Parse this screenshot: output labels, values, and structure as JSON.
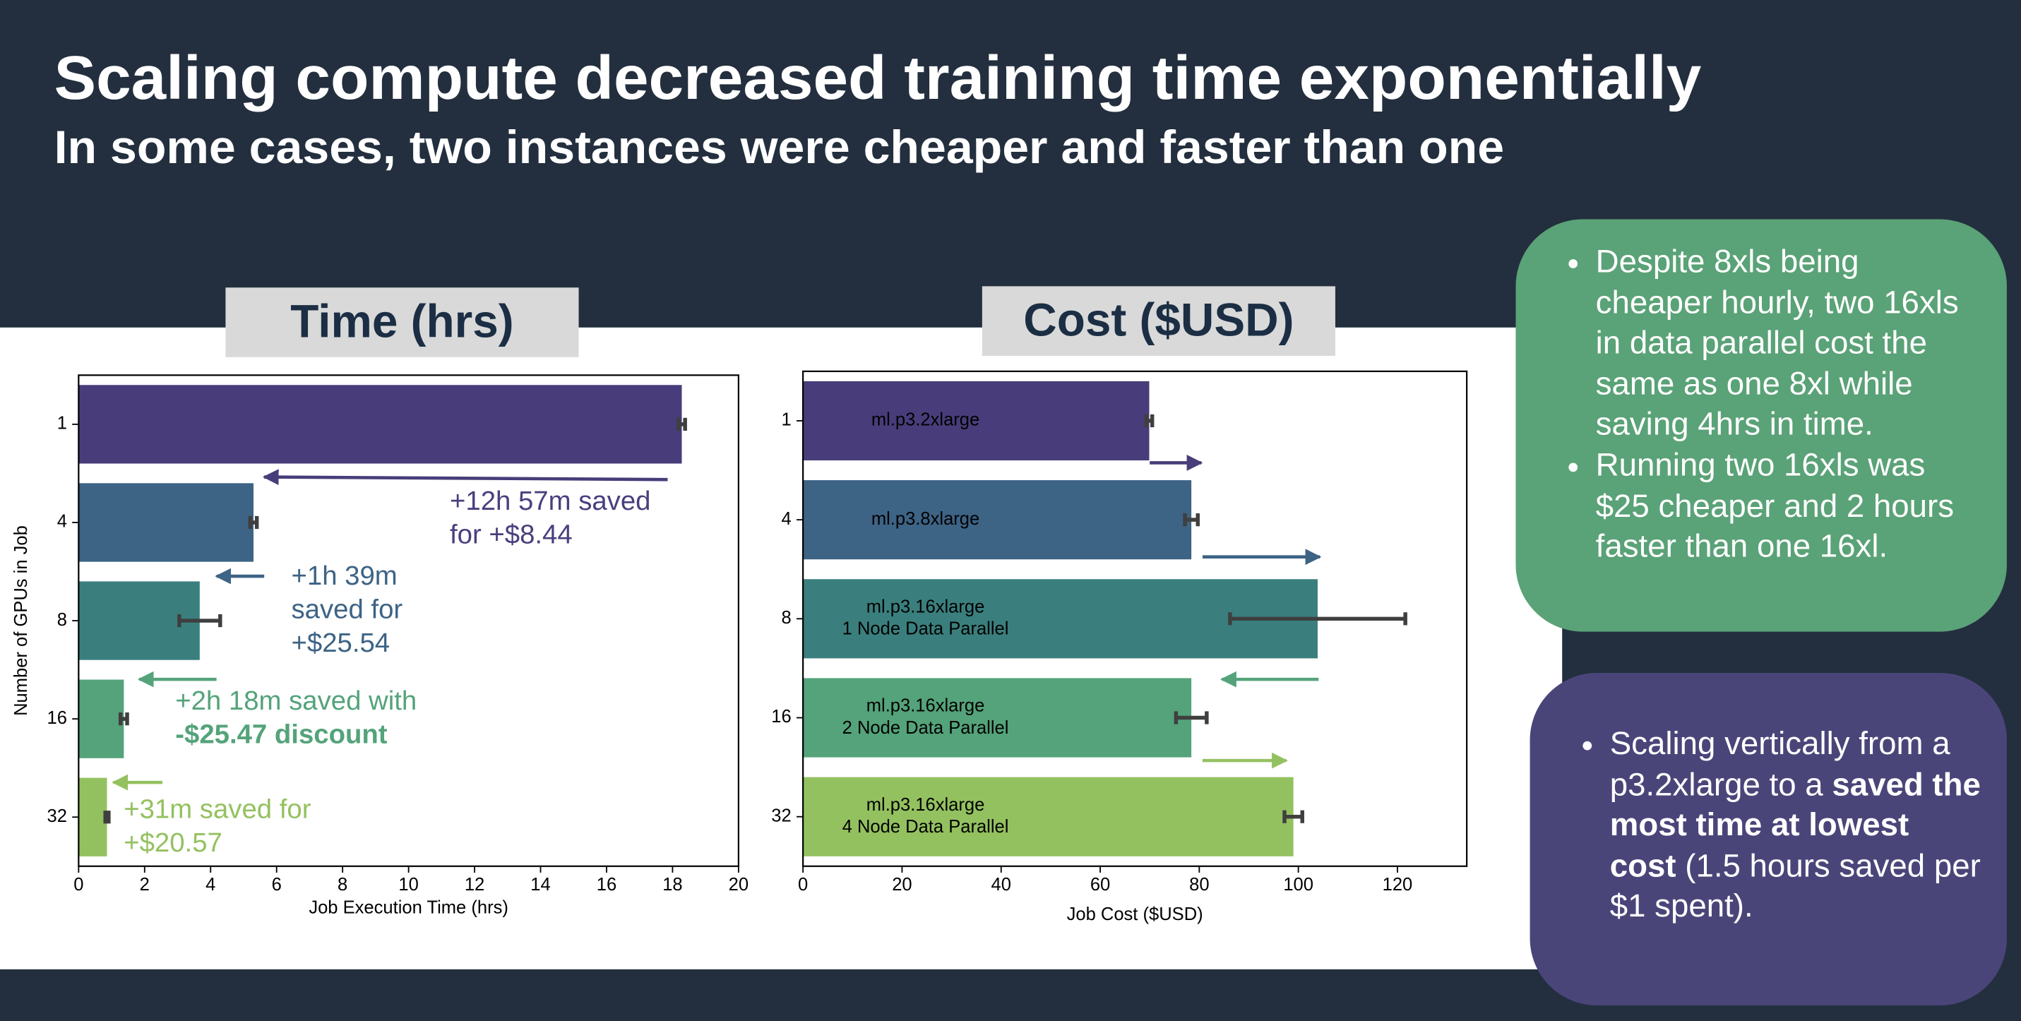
{
  "title": "Scaling compute decreased training time exponentially",
  "subtitle": "In some cases, two instances were cheaper and faster than one",
  "chart_data": [
    {
      "type": "bar",
      "orientation": "horizontal",
      "title": "Time (hrs)",
      "xlabel": "Job Execution Time (hrs)",
      "ylabel": "Number of GPUs in Job",
      "categories": [
        "1",
        "4",
        "8",
        "16",
        "32"
      ],
      "values": [
        18.28,
        5.3,
        3.67,
        1.37,
        0.86
      ],
      "errors": [
        0.1,
        0.1,
        0.62,
        0.1,
        0.05
      ],
      "colors": [
        "#483d7a",
        "#3d6385",
        "#3a7f7e",
        "#54a37a",
        "#94c160"
      ],
      "xlim": [
        0,
        20
      ],
      "xticks": [
        0,
        2,
        4,
        6,
        8,
        10,
        12,
        14,
        16,
        18,
        20
      ],
      "annotations": [
        {
          "lines": [
            "+12h 57m saved",
            "for +$8.44"
          ],
          "color": "#4a3f7e",
          "bold": [
            false,
            false
          ]
        },
        {
          "lines": [
            "+1h 39m",
            "saved for",
            "+$25.54"
          ],
          "color": "#3d6385",
          "bold": [
            false,
            false,
            false
          ]
        },
        {
          "lines": [
            "+2h 18m saved with",
            "-$25.47 discount"
          ],
          "color": "#54a37a",
          "bold": [
            false,
            true
          ]
        },
        {
          "lines": [
            "+31m saved for",
            "+$20.57"
          ],
          "color": "#94c160",
          "bold": [
            false,
            false
          ]
        }
      ]
    },
    {
      "type": "bar",
      "orientation": "horizontal",
      "title": "Cost ($USD)",
      "xlabel": "Job Cost ($USD)",
      "categories": [
        "1",
        "4",
        "8",
        "16",
        "32"
      ],
      "values": [
        69.9,
        78.4,
        103.9,
        78.4,
        99
      ],
      "errors": [
        0.6,
        1.3,
        17.7,
        3.1,
        1.8
      ],
      "colors": [
        "#483d7a",
        "#3d6385",
        "#3a7f7e",
        "#54a37a",
        "#94c160"
      ],
      "bar_labels": [
        [
          "ml.p3.2xlarge"
        ],
        [
          "ml.p3.8xlarge"
        ],
        [
          "ml.p3.16xlarge",
          "1 Node Data Parallel"
        ],
        [
          "ml.p3.16xlarge",
          "2 Node Data Parallel"
        ],
        [
          "ml.p3.16xlarge",
          "4 Node Data Parallel"
        ]
      ],
      "xlim": [
        0,
        134
      ],
      "xticks": [
        0,
        20,
        40,
        60,
        80,
        100,
        120
      ]
    }
  ],
  "callouts": [
    {
      "color": "#5aa277",
      "bullets": [
        [
          "Despite 8xls being cheaper hourly, two 16xls in data parallel cost the same as one 8xl while saving 4hrs in time."
        ],
        [
          "Running two 16xls was $25 cheaper and 2 hours faster than one 16xl."
        ]
      ]
    },
    {
      "color": "#4a4579",
      "bullets": [
        [
          "Scaling vertically from a p3.2xlarge to a ",
          {
            "text": "saved the most time at lowest cost",
            "bold": true
          },
          " (1.5 hours saved per $1 spent)."
        ]
      ]
    }
  ]
}
